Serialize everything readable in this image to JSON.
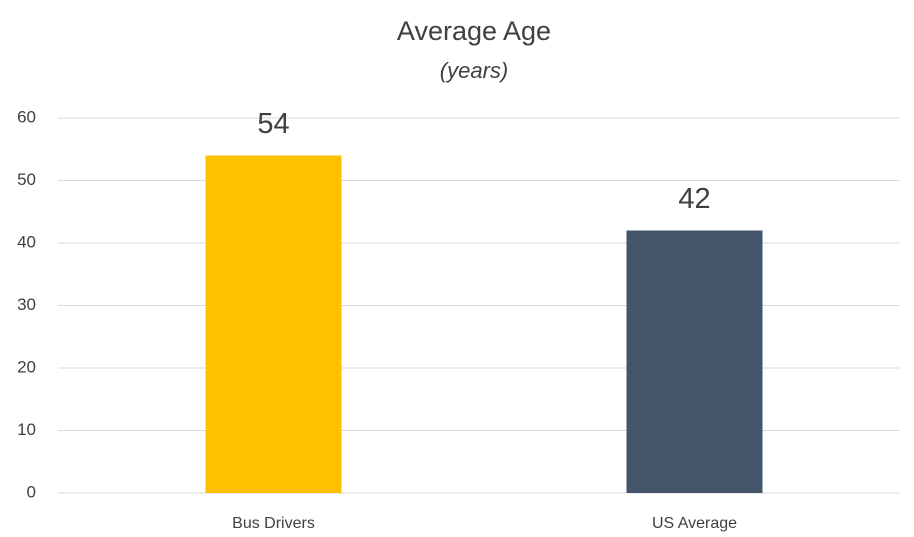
{
  "chart_data": {
    "type": "bar",
    "title": "Average Age",
    "subtitle": "(years)",
    "categories": [
      "Bus Drivers",
      "US Average"
    ],
    "values": [
      54,
      42
    ],
    "colors": [
      "#ffc000",
      "#44546a"
    ],
    "ylim": [
      0,
      60
    ],
    "yticks": [
      0,
      10,
      20,
      30,
      40,
      50,
      60
    ],
    "grid": true
  }
}
